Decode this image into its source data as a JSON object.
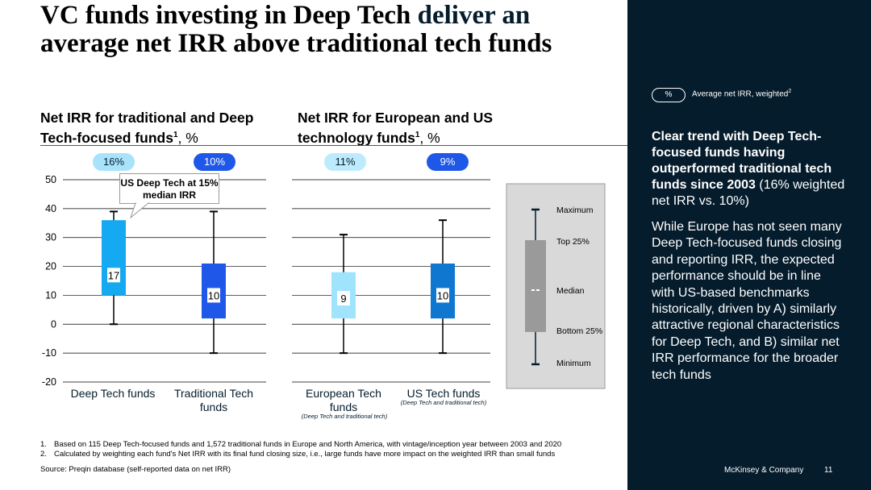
{
  "title": {
    "part1": "VC funds investing in Deep Tech ",
    "part2": "deliver an",
    "part3": "average net IRR above traditional tech funds"
  },
  "left_section": {
    "title": "Net IRR for traditional and Deep Tech-focused funds",
    "sup": "1",
    "unit": ", %"
  },
  "right_section": {
    "title": "Net IRR for European and US technology funds",
    "sup": "1",
    "unit": ", %"
  },
  "callout": "US Deep Tech at 15% median IRR",
  "legend_key": {
    "labels": {
      "max": "Maximum",
      "top": "Top 25%",
      "median": "Median",
      "bottom": "Bottom 25%",
      "min": "Minimum"
    }
  },
  "side_panel": {
    "legend_pill": "%",
    "legend_text": "Average net IRR, weighted",
    "legend_sup": "2",
    "heading_bold": "Clear trend with Deep Tech-focused funds having outperformed traditional tech funds since 2003",
    "heading_normal": " (16% weighted net IRR vs. 10%)",
    "body": "While Europe has not seen many Deep Tech-focused funds closing and reporting IRR, the expected performance should be in line with US-based benchmarks historically, driven by A) similarly attractive regional characteristics for Deep Tech, and B) similar net IRR performance for the broader tech funds"
  },
  "footnotes": [
    {
      "num": "1.",
      "text": "Based on 115 Deep Tech-focused funds and 1,572 traditional funds in Europe and North America, with vintage/inception year between 2003 and 2020"
    },
    {
      "num": "2.",
      "text": "Calculated by weighting each fund's Net IRR with its final fund closing size, i.e., large funds have more impact on the weighted IRR than small funds"
    }
  ],
  "source": "Source: Preqin database (self-reported data on net IRR)",
  "brand": "McKinsey & Company",
  "page_number": "11",
  "colors": {
    "navy": "#051c2c",
    "dt_light": "#14a9f0",
    "trad_blue": "#1f58e8",
    "eu_pale": "#9fe3fd",
    "us_mid": "#1077d0",
    "grey": "#d9d9d9",
    "dark_grey": "#9a9a9a"
  },
  "chart_data": {
    "type": "boxplot",
    "ylim": [
      -20,
      50
    ],
    "yticks": [
      -20,
      -10,
      0,
      10,
      20,
      30,
      40,
      50
    ],
    "grid": true,
    "panels": [
      {
        "title": "Net IRR for traditional and Deep Tech-focused funds, %",
        "categories": [
          {
            "label": "Deep Tech funds",
            "sub": "",
            "min": 0,
            "q1": 10,
            "median": 17,
            "q3": 36,
            "max": 39,
            "avg_weighted": "16%",
            "median_label": "17",
            "color": "#14a9f0",
            "badge_bg": "#a8e3fb",
            "badge_fg": "#051c2c"
          },
          {
            "label": "Traditional Tech funds",
            "sub": "",
            "min": -10,
            "q1": 2,
            "median": 10,
            "q3": 21,
            "max": 39,
            "avg_weighted": "10%",
            "median_label": "10",
            "color": "#1f58e8",
            "badge_bg": "#1f58e8",
            "badge_fg": "#ffffff"
          }
        ]
      },
      {
        "title": "Net IRR for European and US technology funds, %",
        "categories": [
          {
            "label": "European Tech funds",
            "sub": "(Deep Tech and traditional tech)",
            "min": -10,
            "q1": 2,
            "median": 9,
            "q3": 18,
            "max": 31,
            "avg_weighted": "11%",
            "median_label": "9",
            "color": "#9fe3fd",
            "badge_bg": "#bdeafc",
            "badge_fg": "#051c2c"
          },
          {
            "label": "US Tech funds",
            "sub": "(Deep Tech and traditional tech)",
            "min": -10,
            "q1": 2,
            "median": 10,
            "q3": 21,
            "max": 36,
            "avg_weighted": "9%",
            "median_label": "10",
            "color": "#1077d0",
            "badge_bg": "#1f58e8",
            "badge_fg": "#ffffff"
          }
        ]
      }
    ]
  }
}
